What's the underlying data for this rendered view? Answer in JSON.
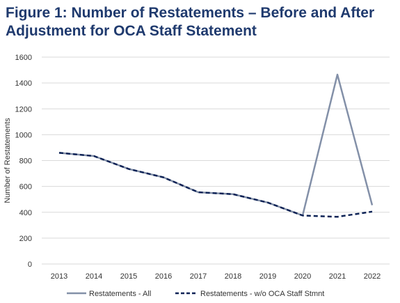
{
  "colors": {
    "title": "#1f3a6e",
    "series_all": "#8390a8",
    "series_wo": "#0e2356",
    "grid": "#d9d9d9"
  },
  "chart_data": {
    "type": "line",
    "title": "Figure 1: Number of Restatements – Before and After Adjustment for OCA Staff Statement",
    "xlabel": "",
    "ylabel": "Number of Restatements",
    "categories": [
      "2013",
      "2014",
      "2015",
      "2016",
      "2017",
      "2018",
      "2019",
      "2020",
      "2021",
      "2022"
    ],
    "ylim": [
      0,
      1600
    ],
    "yticks": [
      0,
      200,
      400,
      600,
      800,
      1000,
      1200,
      1400,
      1600
    ],
    "grid": true,
    "legend_position": "bottom",
    "series": [
      {
        "name": "Restatements - All",
        "style": "solid",
        "values": [
          860,
          835,
          735,
          670,
          555,
          540,
          475,
          375,
          1465,
          455
        ]
      },
      {
        "name": "Restatements - w/o OCA Staff Stmnt",
        "style": "dashed",
        "values": [
          860,
          835,
          735,
          670,
          555,
          540,
          475,
          375,
          365,
          405
        ]
      }
    ]
  }
}
